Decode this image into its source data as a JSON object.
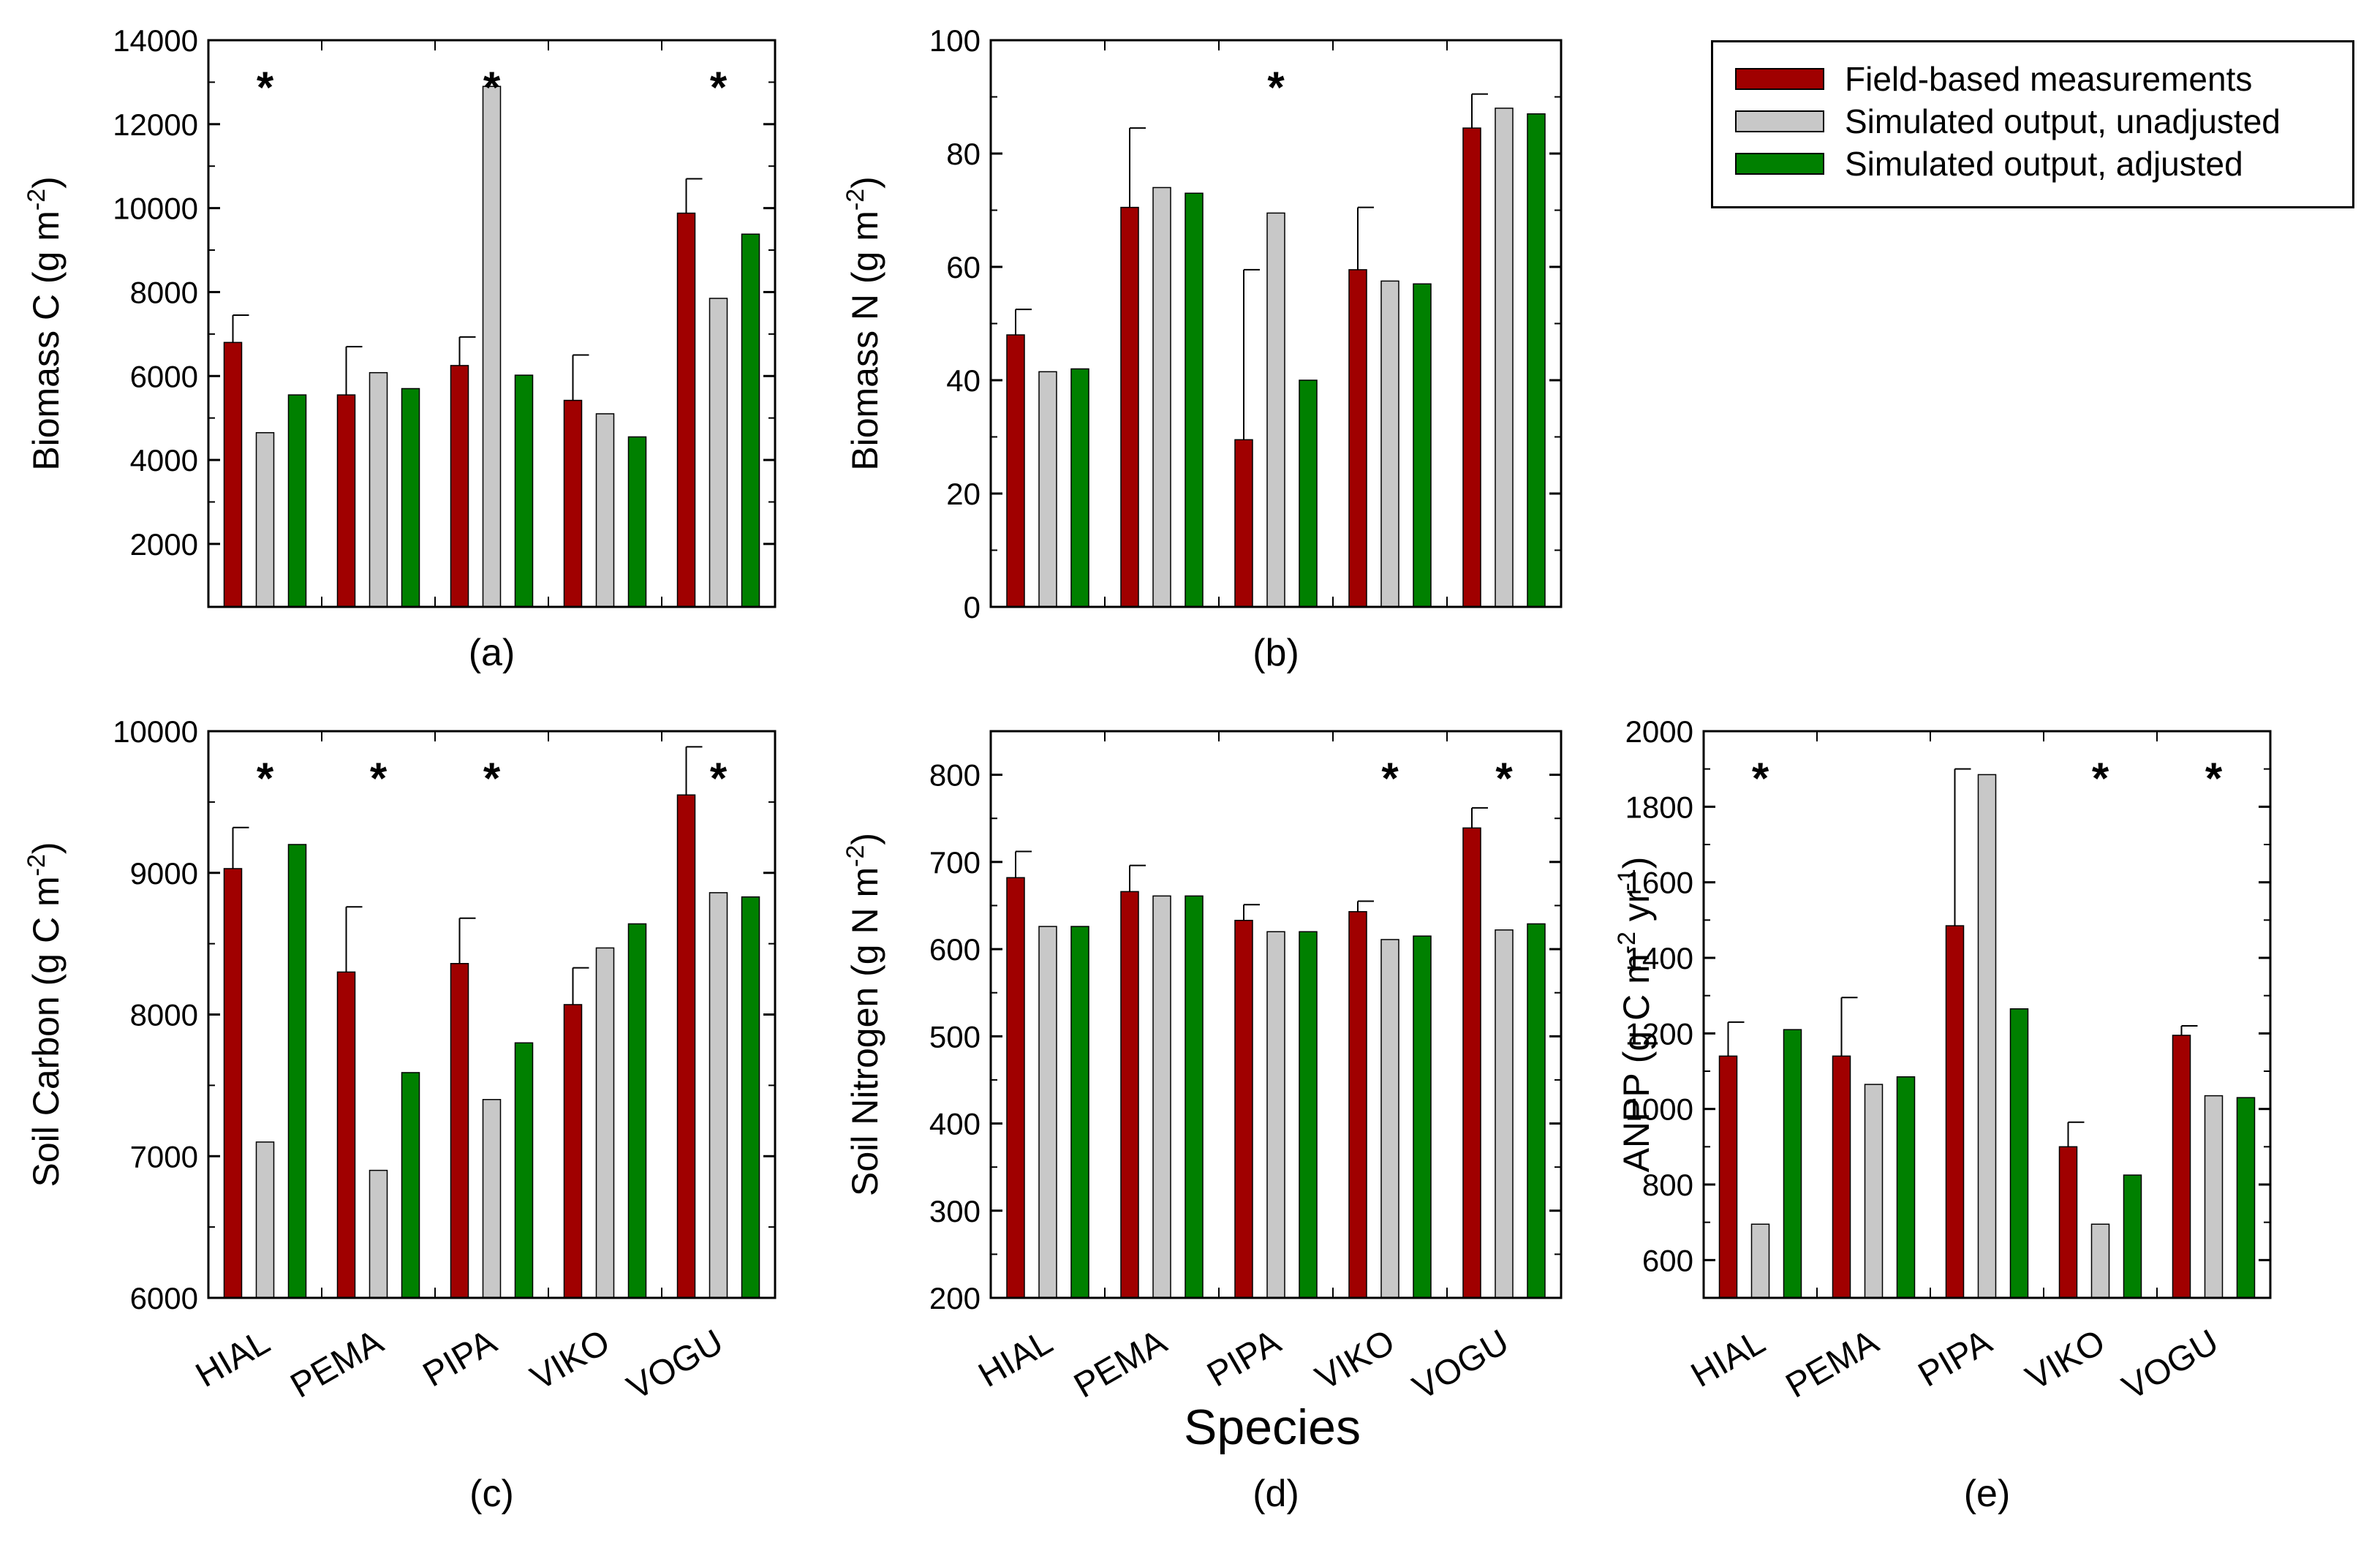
{
  "colors": {
    "field": "#a00000",
    "unadjusted": "#c8c8c8",
    "adjusted": "#008000",
    "axis": "#000000"
  },
  "legend": {
    "items": [
      {
        "label": "Field-based measurements",
        "color": "#a00000"
      },
      {
        "label": "Simulated output, unadjusted",
        "color": "#c8c8c8"
      },
      {
        "label": "Simulated output, adjusted",
        "color": "#008000"
      }
    ]
  },
  "shared_xlabel": "Species",
  "chart_data": [
    {
      "id": "a",
      "panel_label": "(a)",
      "type": "bar",
      "ylabel": "Biomass C (g m-2)",
      "ylim": [
        500,
        14000
      ],
      "yticks": [
        2000,
        4000,
        6000,
        8000,
        10000,
        12000,
        14000
      ],
      "categories": [
        "HIAL",
        "PEMA",
        "PIPA",
        "VIKO",
        "VOGU"
      ],
      "show_category_labels": false,
      "series": [
        {
          "name": "Field-based measurements",
          "values": [
            6800,
            5550,
            6250,
            5420,
            9880
          ],
          "errors": [
            650,
            1150,
            680,
            1080,
            820
          ]
        },
        {
          "name": "Simulated output, unadjusted",
          "values": [
            4650,
            6080,
            12900,
            5100,
            7850
          ]
        },
        {
          "name": "Simulated output, adjusted",
          "values": [
            5550,
            5700,
            6020,
            4550,
            9380
          ]
        }
      ],
      "significance": [
        true,
        false,
        true,
        false,
        true
      ]
    },
    {
      "id": "b",
      "panel_label": "(b)",
      "type": "bar",
      "ylabel": "Biomass N (g m-2)",
      "ylim": [
        0,
        100
      ],
      "yticks": [
        0,
        20,
        40,
        60,
        80,
        100
      ],
      "categories": [
        "HIAL",
        "PEMA",
        "PIPA",
        "VIKO",
        "VOGU"
      ],
      "show_category_labels": false,
      "series": [
        {
          "name": "Field-based measurements",
          "values": [
            48,
            70.5,
            29.5,
            59.5,
            84.5
          ],
          "errors": [
            4.5,
            14,
            30,
            11,
            6
          ]
        },
        {
          "name": "Simulated output, unadjusted",
          "values": [
            41.5,
            74,
            69.5,
            57.5,
            88
          ]
        },
        {
          "name": "Simulated output, adjusted",
          "values": [
            42,
            73,
            40,
            57,
            87
          ]
        }
      ],
      "significance": [
        false,
        false,
        true,
        false,
        false
      ]
    },
    {
      "id": "c",
      "panel_label": "(c)",
      "type": "bar",
      "ylabel": "Soil Carbon (g C m-2)",
      "ylim": [
        6000,
        10000
      ],
      "yticks": [
        6000,
        7000,
        8000,
        9000,
        10000
      ],
      "categories": [
        "HIAL",
        "PEMA",
        "PIPA",
        "VIKO",
        "VOGU"
      ],
      "show_category_labels": true,
      "series": [
        {
          "name": "Field-based measurements",
          "values": [
            9030,
            8300,
            8360,
            8070,
            9550
          ],
          "errors": [
            290,
            460,
            320,
            260,
            340
          ]
        },
        {
          "name": "Simulated output, unadjusted",
          "values": [
            7100,
            6900,
            7400,
            8470,
            8860
          ]
        },
        {
          "name": "Simulated output, adjusted",
          "values": [
            9200,
            7590,
            7800,
            8640,
            8830
          ]
        }
      ],
      "significance": [
        true,
        true,
        true,
        false,
        true
      ]
    },
    {
      "id": "d",
      "panel_label": "(d)",
      "type": "bar",
      "ylabel": "Soil Nitrogen (g N m-2)",
      "ylim": [
        200,
        850
      ],
      "yticks": [
        200,
        300,
        400,
        500,
        600,
        700,
        800
      ],
      "categories": [
        "HIAL",
        "PEMA",
        "PIPA",
        "VIKO",
        "VOGU"
      ],
      "show_category_labels": true,
      "series": [
        {
          "name": "Field-based measurements",
          "values": [
            682,
            666,
            633,
            643,
            739
          ],
          "errors": [
            30,
            30,
            18,
            12,
            23
          ]
        },
        {
          "name": "Simulated output, unadjusted",
          "values": [
            626,
            661,
            620,
            611,
            622
          ]
        },
        {
          "name": "Simulated output, adjusted",
          "values": [
            626,
            661,
            620,
            615,
            629
          ]
        }
      ],
      "significance": [
        false,
        false,
        false,
        true,
        true
      ]
    },
    {
      "id": "e",
      "panel_label": "(e)",
      "type": "bar",
      "ylabel": "ANPP (g C m-2 yr-1)",
      "ylim": [
        500,
        2000
      ],
      "yticks": [
        600,
        800,
        1000,
        1200,
        1400,
        1600,
        1800,
        2000
      ],
      "categories": [
        "HIAL",
        "PEMA",
        "PIPA",
        "VIKO",
        "VOGU"
      ],
      "show_category_labels": true,
      "series": [
        {
          "name": "Field-based measurements",
          "values": [
            1140,
            1140,
            1485,
            900,
            1195
          ],
          "errors": [
            90,
            155,
            415,
            65,
            25
          ]
        },
        {
          "name": "Simulated output, unadjusted",
          "values": [
            695,
            1065,
            1885,
            695,
            1035
          ]
        },
        {
          "name": "Simulated output, adjusted",
          "values": [
            1210,
            1085,
            1265,
            825,
            1030
          ]
        }
      ],
      "significance": [
        true,
        false,
        false,
        true,
        true
      ]
    }
  ]
}
